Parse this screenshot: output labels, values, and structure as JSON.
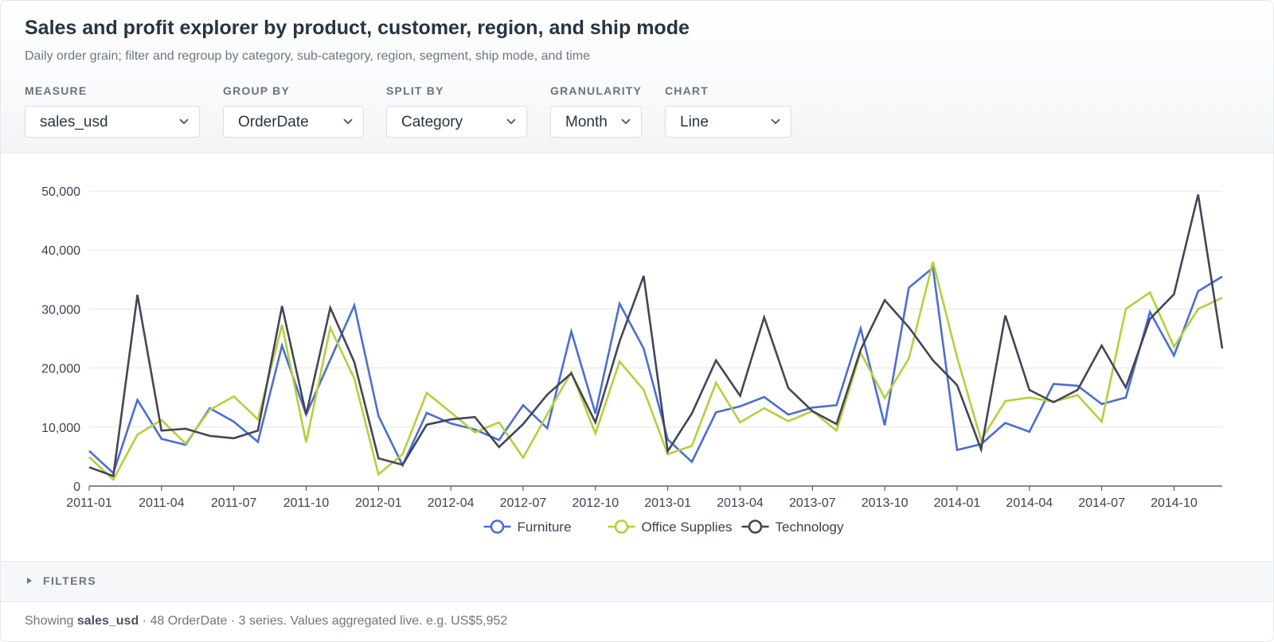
{
  "header": {
    "title": "Sales and profit explorer by product, customer, region, and ship mode",
    "subtitle": "Daily order grain; filter and regroup by category, sub-category, region, segment, ship mode, and time"
  },
  "controls": {
    "measure": {
      "label": "MEASURE",
      "value": "sales_usd"
    },
    "group_by": {
      "label": "GROUP BY",
      "value": "OrderDate"
    },
    "split_by": {
      "label": "SPLIT BY",
      "value": "Category"
    },
    "granularity": {
      "label": "GRANULARITY",
      "value": "Month"
    },
    "chart": {
      "label": "CHART",
      "value": "Line"
    }
  },
  "filters": {
    "label": "FILTERS"
  },
  "status": {
    "prefix": "Showing",
    "measure": "sales_usd",
    "suffix": "· 48 OrderDate · 3 series. Values aggregated live. e.g. US$5,952"
  },
  "chart_data": {
    "type": "line",
    "ylim": [
      0,
      50000
    ],
    "yticks": [
      0,
      10000,
      20000,
      30000,
      40000,
      50000
    ],
    "grid": true,
    "legend_position": "bottom-center",
    "xtick_labels": [
      "2011-01",
      "2011-04",
      "2011-07",
      "2011-10",
      "2012-01",
      "2012-04",
      "2012-07",
      "2012-10",
      "2013-01",
      "2013-04",
      "2013-07",
      "2013-10",
      "2014-01",
      "2014-04",
      "2014-07",
      "2014-10"
    ],
    "x": [
      "2011-01",
      "2011-02",
      "2011-03",
      "2011-04",
      "2011-05",
      "2011-06",
      "2011-07",
      "2011-08",
      "2011-09",
      "2011-10",
      "2011-11",
      "2011-12",
      "2012-01",
      "2012-02",
      "2012-03",
      "2012-04",
      "2012-05",
      "2012-06",
      "2012-07",
      "2012-08",
      "2012-09",
      "2012-10",
      "2012-11",
      "2012-12",
      "2013-01",
      "2013-02",
      "2013-03",
      "2013-04",
      "2013-05",
      "2013-06",
      "2013-07",
      "2013-08",
      "2013-09",
      "2013-10",
      "2013-11",
      "2013-12",
      "2014-01",
      "2014-02",
      "2014-03",
      "2014-04",
      "2014-05",
      "2014-06",
      "2014-07",
      "2014-08",
      "2014-09",
      "2014-10",
      "2014-11",
      "2014-12"
    ],
    "series": [
      {
        "name": "Furniture",
        "color": "#4a6fd4",
        "values": [
          5952,
          2200,
          14600,
          8000,
          7000,
          13200,
          10900,
          7500,
          23800,
          12100,
          21400,
          30600,
          11900,
          3500,
          12400,
          10600,
          9600,
          7800,
          13700,
          9800,
          26200,
          12300,
          30900,
          23300,
          7900,
          4100,
          12500,
          13500,
          15100,
          12100,
          13300,
          13700,
          26700,
          10300,
          33600,
          37000,
          6100,
          7100,
          10700,
          9200,
          17300,
          17000,
          13900,
          15000,
          29500,
          22100,
          33000,
          35500
        ]
      },
      {
        "name": "Office Supplies",
        "color": "#b4d03b",
        "values": [
          4900,
          1100,
          8700,
          11200,
          7200,
          12900,
          15200,
          11300,
          27300,
          7400,
          26800,
          18200,
          2000,
          5400,
          15800,
          12500,
          9100,
          10800,
          4800,
          12200,
          19300,
          8900,
          21100,
          16300,
          5400,
          6800,
          17500,
          10800,
          13200,
          11000,
          12700,
          9400,
          22600,
          14900,
          21600,
          38000,
          21800,
          7800,
          14400,
          15000,
          14300,
          15400,
          10900,
          30000,
          32800,
          23600,
          30000,
          31900
        ]
      },
      {
        "name": "Technology",
        "color": "#444558",
        "values": [
          3200,
          1700,
          32400,
          9400,
          9700,
          8500,
          8100,
          9400,
          30500,
          12100,
          30200,
          21000,
          4700,
          3600,
          10400,
          11300,
          11700,
          6600,
          10500,
          15500,
          19100,
          10800,
          24500,
          35600,
          5900,
          12300,
          21300,
          15300,
          28600,
          16600,
          12700,
          10500,
          23100,
          31500,
          26900,
          21300,
          17100,
          6200,
          28900,
          16300,
          14200,
          16300,
          23800,
          16700,
          28300,
          32500,
          49400,
          23300
        ]
      }
    ]
  }
}
